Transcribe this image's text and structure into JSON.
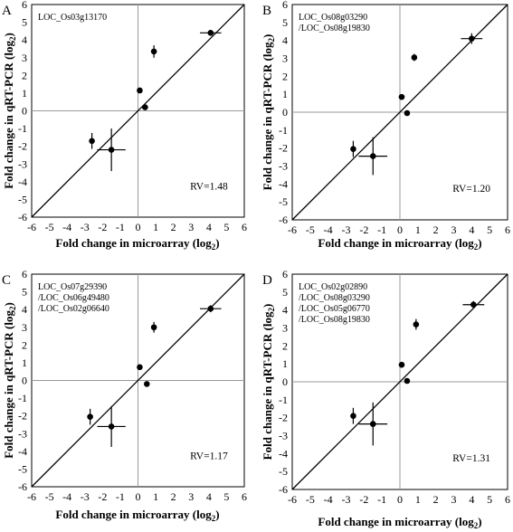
{
  "chart_data": [
    {
      "panel_letter": "A",
      "type": "scatter",
      "gene_lines": [
        "LOC_Os03g13170"
      ],
      "rv_label": "RV=1.48",
      "xlabel": "Fold change in microarray (log",
      "xlabel_sub": "2",
      "xlabel_tail": ")",
      "ylabel": "Fold change in qRT-PCR (log",
      "ylabel_sub": "2",
      "ylabel_tail": ")",
      "xlim": [
        -6,
        6
      ],
      "ylim": [
        -6,
        6
      ],
      "x_ticks": [
        -6,
        -5,
        -4,
        -3,
        -2,
        -1,
        0,
        1,
        2,
        3,
        4,
        5,
        6
      ],
      "y_ticks": [
        -6,
        -5,
        -4,
        -3,
        -2,
        -1,
        0,
        1,
        2,
        3,
        4,
        5,
        6
      ],
      "reference_line": "y = x",
      "points": [
        {
          "x": 0.1,
          "y": 1.15,
          "xerr": 0.15,
          "yerr": 0.1
        },
        {
          "x": 0.4,
          "y": 0.2,
          "xerr": 0,
          "yerr": 0
        },
        {
          "x": 0.9,
          "y": 3.35,
          "xerr": 0,
          "yerr": 0.35
        },
        {
          "x": 4.1,
          "y": 4.4,
          "xerr": 0.6,
          "yerr": 0.15
        },
        {
          "x": -2.6,
          "y": -1.7,
          "xerr": 0,
          "yerr": 0.45
        },
        {
          "x": -1.5,
          "y": -2.2,
          "xerr": 0.8,
          "yerr": 1.2
        }
      ]
    },
    {
      "panel_letter": "B",
      "type": "scatter",
      "gene_lines": [
        "LOC_Os08g03290",
        "/LOC_Os08g19830"
      ],
      "rv_label": "RV=1.20",
      "xlabel": "Fold change in microarray (log",
      "xlabel_sub": "2",
      "xlabel_tail": ")",
      "ylabel": "Fold change in qRT-PCR (log",
      "ylabel_sub": "2",
      "ylabel_tail": ")",
      "xlim": [
        -6,
        6
      ],
      "ylim": [
        -6,
        6
      ],
      "x_ticks": [
        -6,
        -5,
        -4,
        -3,
        -2,
        -1,
        0,
        1,
        2,
        3,
        4,
        5,
        6
      ],
      "y_ticks": [
        -6,
        -5,
        -4,
        -3,
        -2,
        -1,
        0,
        1,
        2,
        3,
        4,
        5,
        6
      ],
      "reference_line": "y = x",
      "points": [
        {
          "x": 0.1,
          "y": 0.85,
          "xerr": 0.15,
          "yerr": 0.1
        },
        {
          "x": 0.4,
          "y": -0.05,
          "xerr": 0,
          "yerr": 0
        },
        {
          "x": 0.8,
          "y": 3.05,
          "xerr": 0,
          "yerr": 0.2
        },
        {
          "x": 4.0,
          "y": 4.1,
          "xerr": 0.6,
          "yerr": 0.3
        },
        {
          "x": -2.6,
          "y": -2.05,
          "xerr": 0,
          "yerr": 0.45
        },
        {
          "x": -1.5,
          "y": -2.45,
          "xerr": 0.8,
          "yerr": 1.05
        }
      ]
    },
    {
      "panel_letter": "C",
      "type": "scatter",
      "gene_lines": [
        "LOC_Os07g29390",
        "/LOC_Os06g49480",
        "/LOC_Os02g06640"
      ],
      "rv_label": "RV=1.17",
      "xlabel": "Fold change in microarray (log",
      "xlabel_sub": "2",
      "xlabel_tail": ")",
      "ylabel": "Fold change in qRT-PCR (log",
      "ylabel_sub": "2",
      "ylabel_tail": ")",
      "xlim": [
        -6,
        6
      ],
      "ylim": [
        -6,
        6
      ],
      "x_ticks": [
        -6,
        -5,
        -4,
        -3,
        -2,
        -1,
        0,
        1,
        2,
        3,
        4,
        5,
        6
      ],
      "y_ticks": [
        -6,
        -5,
        -4,
        -3,
        -2,
        -1,
        0,
        1,
        2,
        3,
        4,
        5,
        6
      ],
      "reference_line": "y = x",
      "points": [
        {
          "x": 0.1,
          "y": 0.75,
          "xerr": 0.15,
          "yerr": 0.1
        },
        {
          "x": 0.5,
          "y": -0.2,
          "xerr": 0,
          "yerr": 0
        },
        {
          "x": 0.9,
          "y": 3.0,
          "xerr": 0,
          "yerr": 0.3
        },
        {
          "x": 4.1,
          "y": 4.05,
          "xerr": 0.6,
          "yerr": 0.2
        },
        {
          "x": -2.7,
          "y": -2.05,
          "xerr": 0,
          "yerr": 0.45
        },
        {
          "x": -1.5,
          "y": -2.6,
          "xerr": 0.8,
          "yerr": 1.15
        }
      ]
    },
    {
      "panel_letter": "D",
      "type": "scatter",
      "gene_lines": [
        "LOC_Os02g02890",
        "/LOC_Os08g03290",
        "/LOC_Os05g06770",
        "/LOC_Os08g19830"
      ],
      "rv_label": "RV=1.31",
      "xlabel": "Fold change in microarray (log",
      "xlabel_sub": "2",
      "xlabel_tail": ")",
      "ylabel": "Fold change in qRT-PCR (log",
      "ylabel_sub": "2",
      "ylabel_tail": ")",
      "xlim": [
        -6,
        6
      ],
      "ylim": [
        -6,
        6
      ],
      "x_ticks": [
        -6,
        -5,
        -4,
        -3,
        -2,
        -1,
        0,
        1,
        2,
        3,
        4,
        5,
        6
      ],
      "y_ticks": [
        -6,
        -5,
        -4,
        -3,
        -2,
        -1,
        0,
        1,
        2,
        3,
        4,
        5,
        6
      ],
      "reference_line": "y = x",
      "points": [
        {
          "x": 0.1,
          "y": 0.95,
          "xerr": 0.15,
          "yerr": 0.1
        },
        {
          "x": 0.4,
          "y": 0.05,
          "xerr": 0,
          "yerr": 0
        },
        {
          "x": 0.9,
          "y": 3.2,
          "xerr": 0,
          "yerr": 0.3
        },
        {
          "x": 4.1,
          "y": 4.3,
          "xerr": 0.6,
          "yerr": 0.2
        },
        {
          "x": -2.6,
          "y": -1.9,
          "xerr": 0,
          "yerr": 0.45
        },
        {
          "x": -1.5,
          "y": -2.35,
          "xerr": 0.8,
          "yerr": 1.2
        }
      ]
    }
  ]
}
